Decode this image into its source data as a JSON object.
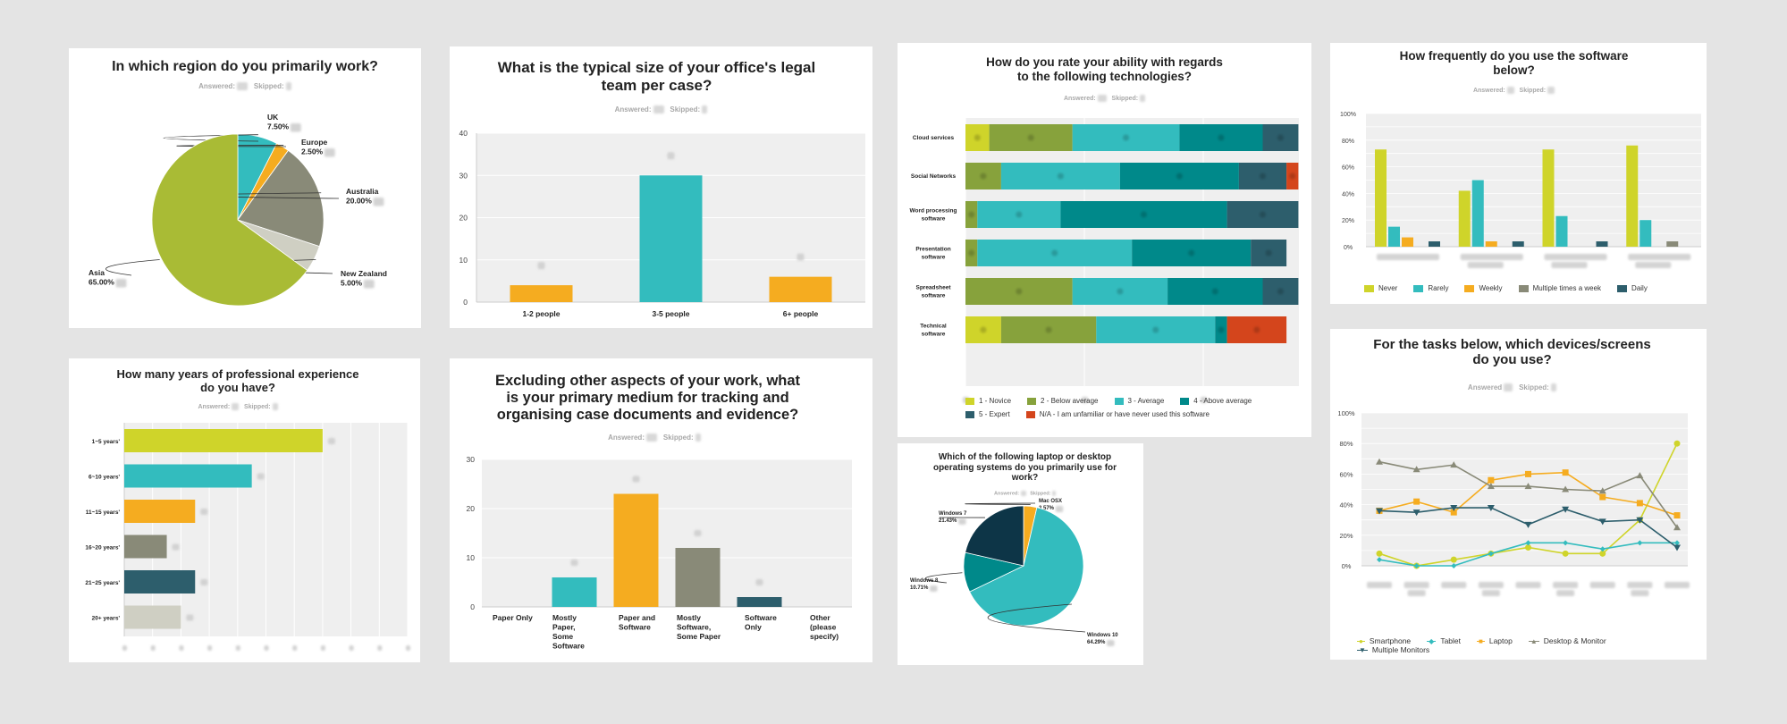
{
  "colors": {
    "lime": "#cfd42a",
    "olive": "#a9bb35",
    "teal": "#33bcbe",
    "orange": "#f5ac20",
    "grey": "#898a78",
    "lightgrey": "#cfcfc3",
    "darkteal": "#2d5e6c",
    "deepteal": "#00898a",
    "navy": "#0d3547",
    "green2": "#87a23c",
    "red": "#d4451c",
    "plotbg": "#efefef",
    "grid": "#ffffff"
  },
  "meta": {
    "answered_label": "Answered:",
    "skipped_label": "Skipped:",
    "answered_label_alt": "Answered"
  },
  "chart_data": [
    {
      "id": "region",
      "type": "pie",
      "title": "In which region do you primarily work?",
      "slices": [
        {
          "label": "UK",
          "pct_label": "7.50%",
          "value": 7.5,
          "color": "#33bcbe"
        },
        {
          "label": "Europe",
          "pct_label": "2.50%",
          "value": 2.5,
          "color": "#f5ac20"
        },
        {
          "label": "Australia",
          "pct_label": "20.00%",
          "value": 20,
          "color": "#898a78"
        },
        {
          "label": "New Zealand",
          "pct_label": "5.00%",
          "value": 5,
          "color": "#cfcfc3"
        },
        {
          "label": "Asia",
          "pct_label": "65.00%",
          "value": 65,
          "color": "#a9bb35"
        }
      ]
    },
    {
      "id": "team_size",
      "type": "bar",
      "title": "What is the typical size of your office's legal team per case?",
      "title_lines": [
        "What is the typical size of your office's legal",
        "team per case?"
      ],
      "categories": [
        "1-2 people",
        "3-5 people",
        "6+ people"
      ],
      "values": [
        4,
        30,
        6
      ],
      "colors": [
        "#f5ac20",
        "#33bcbe",
        "#f5ac20"
      ],
      "yticks": [
        0,
        10,
        20,
        30,
        40
      ],
      "ylim": [
        0,
        40
      ]
    },
    {
      "id": "tech_ability",
      "type": "bar",
      "orientation": "horizontal-stacked",
      "title": "How do you rate your ability with regards to the following technologies?",
      "title_lines": [
        "How do you rate your ability with regards",
        "to the following technologies?"
      ],
      "categories": [
        [
          "Cloud services"
        ],
        [
          "Social Networks"
        ],
        [
          "Word processing",
          "software"
        ],
        [
          "Presentation",
          "software"
        ],
        [
          "Spreadsheet",
          "software"
        ],
        [
          "Technical",
          "software"
        ]
      ],
      "series": [
        {
          "name": "1 - Novice",
          "color": "#cfd42a",
          "values": [
            2,
            0,
            0,
            0,
            0,
            3
          ]
        },
        {
          "name": "2 - Below average",
          "color": "#87a23c",
          "values": [
            7,
            3,
            1,
            1,
            9,
            8
          ]
        },
        {
          "name": "3 - Average",
          "color": "#33bcbe",
          "values": [
            9,
            10,
            7,
            13,
            8,
            10
          ]
        },
        {
          "name": "4 - Above average",
          "color": "#00898a",
          "values": [
            7,
            10,
            14,
            10,
            8,
            1
          ]
        },
        {
          "name": "5 - Expert",
          "color": "#2d5e6c",
          "values": [
            3,
            4,
            6,
            3,
            3,
            0
          ]
        },
        {
          "name": "N/A - I am unfamiliar or have never used this software",
          "color": "#d4451c",
          "values": [
            0,
            1,
            0,
            0,
            0,
            5
          ]
        }
      ],
      "xlim": [
        0,
        28
      ]
    },
    {
      "id": "software_freq",
      "type": "bar",
      "title": "How frequently do you use the software below?",
      "title_lines": [
        "How frequently do you use the software",
        "below?"
      ],
      "categories": [
        "",
        "",
        "",
        ""
      ],
      "series": [
        {
          "name": "Never",
          "color": "#cfd42a",
          "values": [
            73,
            42,
            73,
            76
          ]
        },
        {
          "name": "Rarely",
          "color": "#33bcbe",
          "values": [
            15,
            50,
            23,
            20
          ]
        },
        {
          "name": "Weekly",
          "color": "#f5ac20",
          "values": [
            7,
            4,
            0,
            0
          ]
        },
        {
          "name": "Multiple times a week",
          "color": "#898a78",
          "values": [
            0,
            0,
            0,
            4
          ]
        },
        {
          "name": "Daily",
          "color": "#2d5e6c",
          "values": [
            4,
            4,
            4,
            0
          ]
        }
      ],
      "yticks": [
        "0%",
        "20%",
        "40%",
        "60%",
        "80%",
        "100%"
      ],
      "ylim": [
        0,
        100
      ]
    },
    {
      "id": "experience",
      "type": "bar",
      "orientation": "horizontal",
      "title": "How many years of professional experience do you have?",
      "title_lines": [
        "How many years of professional experience",
        "do you have?"
      ],
      "categories": [
        "1~5 years'",
        "6~10 years'",
        "11~15 years'",
        "16~20 years'",
        "21~25 years'",
        "20+ years'"
      ],
      "values": [
        14,
        9,
        5,
        3,
        5,
        4
      ],
      "colors": [
        "#cfd42a",
        "#33bcbe",
        "#f5ac20",
        "#898a78",
        "#2d5e6c",
        "#cfcfc3"
      ],
      "xlim": [
        0,
        20
      ]
    },
    {
      "id": "medium",
      "type": "bar",
      "title": "Excluding other aspects of your work, what is your primary medium for tracking and organising case documents and evidence?",
      "title_lines": [
        "Excluding other aspects of your work, what",
        "is your primary medium for tracking and",
        "organising case documents and evidence?"
      ],
      "categories": [
        [
          "Paper Only"
        ],
        [
          "Mostly",
          "Paper,",
          "Some",
          "Software"
        ],
        [
          "Paper and",
          "Software"
        ],
        [
          "Mostly",
          "Software,",
          "Some Paper"
        ],
        [
          "Software",
          "Only"
        ],
        [
          "Other",
          "(please",
          "specify)"
        ]
      ],
      "values": [
        0,
        6,
        23,
        12,
        2,
        0
      ],
      "colors": [
        "#33bcbe",
        "#33bcbe",
        "#f5ac20",
        "#898a78",
        "#2d5e6c",
        "#cfcfc3"
      ],
      "yticks": [
        0,
        10,
        20,
        30
      ],
      "ylim": [
        0,
        30
      ]
    },
    {
      "id": "os",
      "type": "pie",
      "title": "Which of the following laptop or desktop operating systems do you primarily use for work?",
      "title_lines": [
        "Which of the following laptop or desktop",
        "operating systems do you primarily use for",
        "work?"
      ],
      "slices": [
        {
          "label": "Mac OSX",
          "pct_label": "3.57%",
          "value": 3.57,
          "color": "#f5ac20"
        },
        {
          "label": "Windows 10",
          "pct_label": "64.29%",
          "value": 64.29,
          "color": "#33bcbe"
        },
        {
          "label": "Windows 8",
          "pct_label": "10.71%",
          "value": 10.71,
          "color": "#00898a"
        },
        {
          "label": "Windows 7",
          "pct_label": "21.43%",
          "value": 21.43,
          "color": "#0d3547"
        }
      ]
    },
    {
      "id": "devices",
      "type": "line",
      "title": "For the tasks below, which devices/screens do you use?",
      "title_lines": [
        "For the tasks below, which devices/screens",
        "do you use?"
      ],
      "categories": [
        "",
        "",
        "",
        "",
        "",
        "",
        "",
        "",
        ""
      ],
      "series": [
        {
          "name": "Smartphone",
          "color": "#cfd42a",
          "marker": "circle",
          "values": [
            8,
            0,
            4,
            8,
            12,
            8,
            8,
            30,
            80
          ]
        },
        {
          "name": "Tablet",
          "color": "#33bcbe",
          "marker": "diamond",
          "values": [
            4,
            0,
            0,
            8,
            15,
            15,
            11,
            15,
            15
          ]
        },
        {
          "name": "Laptop",
          "color": "#f5ac20",
          "marker": "square",
          "values": [
            36,
            42,
            35,
            56,
            60,
            61,
            45,
            41,
            33
          ]
        },
        {
          "name": "Desktop & Monitor",
          "color": "#898a78",
          "marker": "triangle-up",
          "values": [
            68,
            63,
            66,
            52,
            52,
            50,
            49,
            59,
            25
          ]
        },
        {
          "name": "Multiple Monitors",
          "color": "#2d5e6c",
          "marker": "triangle-down",
          "values": [
            36,
            35,
            38,
            38,
            27,
            37,
            29,
            30,
            12
          ]
        }
      ],
      "yticks": [
        "0%",
        "20%",
        "40%",
        "60%",
        "80%",
        "100%"
      ],
      "ylim": [
        0,
        100
      ]
    }
  ]
}
